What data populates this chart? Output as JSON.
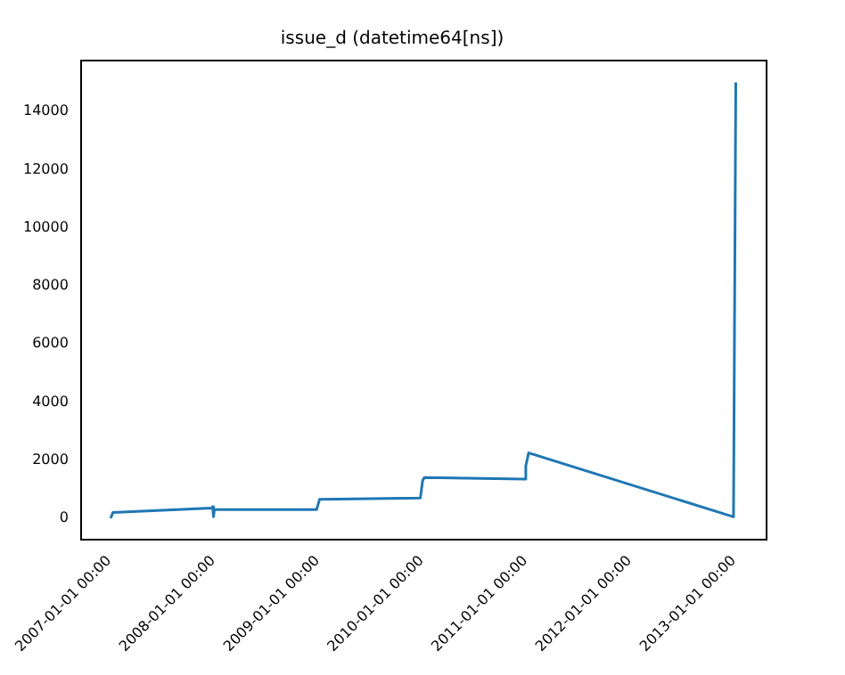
{
  "chart_data": {
    "type": "line",
    "title": "issue_d (datetime64[ns])",
    "x": [
      "2007-01-06",
      "2007-01-14",
      "2007-12-28",
      "2007-12-30",
      "2008-01-02",
      "2008-01-05",
      "2008-12-29",
      "2009-01-08",
      "2009-12-28",
      "2010-01-05",
      "2010-01-11",
      "2010-12-29",
      "2011-01-02",
      "2011-01-12",
      "2012-12-31",
      "2013-01-08"
    ],
    "series": [
      {
        "color": "#1f77b4",
        "values": [
          0,
          200,
          350,
          400,
          50,
          300,
          300,
          650,
          700,
          1300,
          1400,
          1350,
          1800,
          2250,
          50,
          15000
        ]
      }
    ],
    "xlim": [
      "2006-09-24",
      "2013-04-26"
    ],
    "xticks": [
      {
        "value": "2007-01-01",
        "label": "2007-01-01 00:00"
      },
      {
        "value": "2008-01-01",
        "label": "2008-01-01 00:00"
      },
      {
        "value": "2009-01-01",
        "label": "2009-01-01 00:00"
      },
      {
        "value": "2010-01-01",
        "label": "2010-01-01 00:00"
      },
      {
        "value": "2011-01-01",
        "label": "2011-01-01 00:00"
      },
      {
        "value": "2012-01-01",
        "label": "2012-01-01 00:00"
      },
      {
        "value": "2013-01-01",
        "label": "2013-01-01 00:00"
      }
    ],
    "ylim": [
      -750,
      15750
    ],
    "yticks": [
      0,
      2000,
      4000,
      6000,
      8000,
      10000,
      12000,
      14000
    ],
    "grid": false,
    "legend": false,
    "marker": "none",
    "line_style": "solid"
  }
}
